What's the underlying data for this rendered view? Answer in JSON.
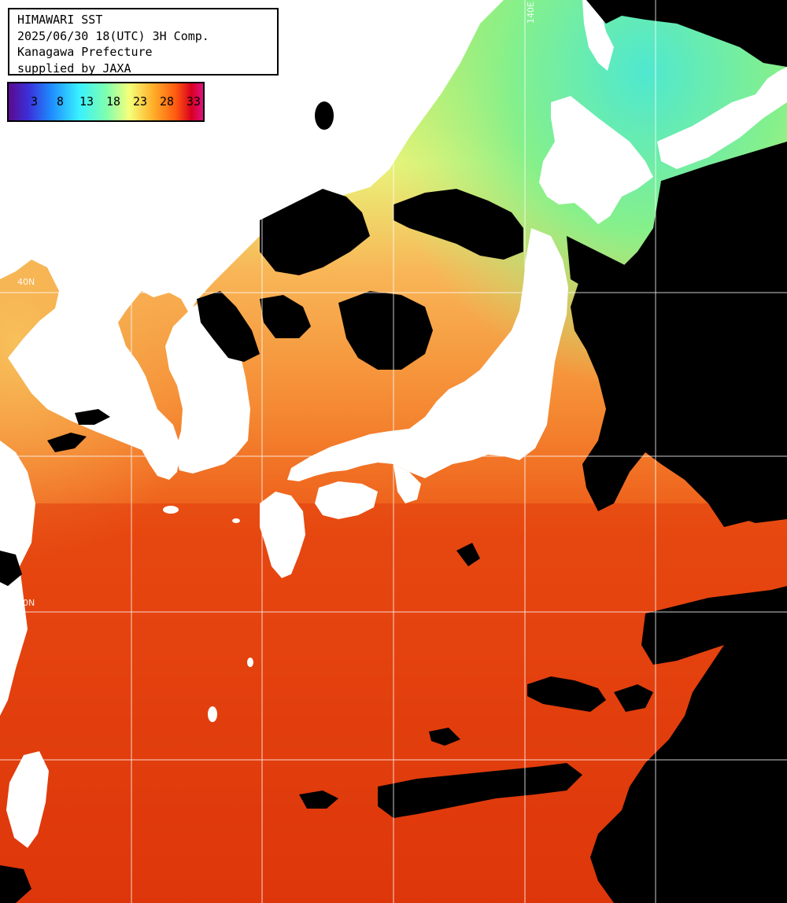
{
  "header": {
    "line1": "HIMAWARI SST",
    "line2": "2025/06/30 18(UTC) 3H Comp.",
    "line3": "Kanagawa Prefecture",
    "line4": "supplied by JAXA"
  },
  "color_scale": {
    "labels": [
      "3",
      "8",
      "13",
      "18",
      "23",
      "28",
      "33"
    ],
    "colors": [
      "#5b0a8f",
      "#3b2fd8",
      "#1f8cff",
      "#38f0ff",
      "#7dffb0",
      "#f5ff7a",
      "#ffb12a",
      "#ff5a10",
      "#d80020",
      "#e01080"
    ]
  },
  "grid_labels": {
    "lon_top": "140E",
    "lat_upper": "40N",
    "lat_lower": "30N"
  },
  "colors": {
    "land": "#ffffff",
    "cloud": "#000000",
    "grid": "#ffffff"
  }
}
